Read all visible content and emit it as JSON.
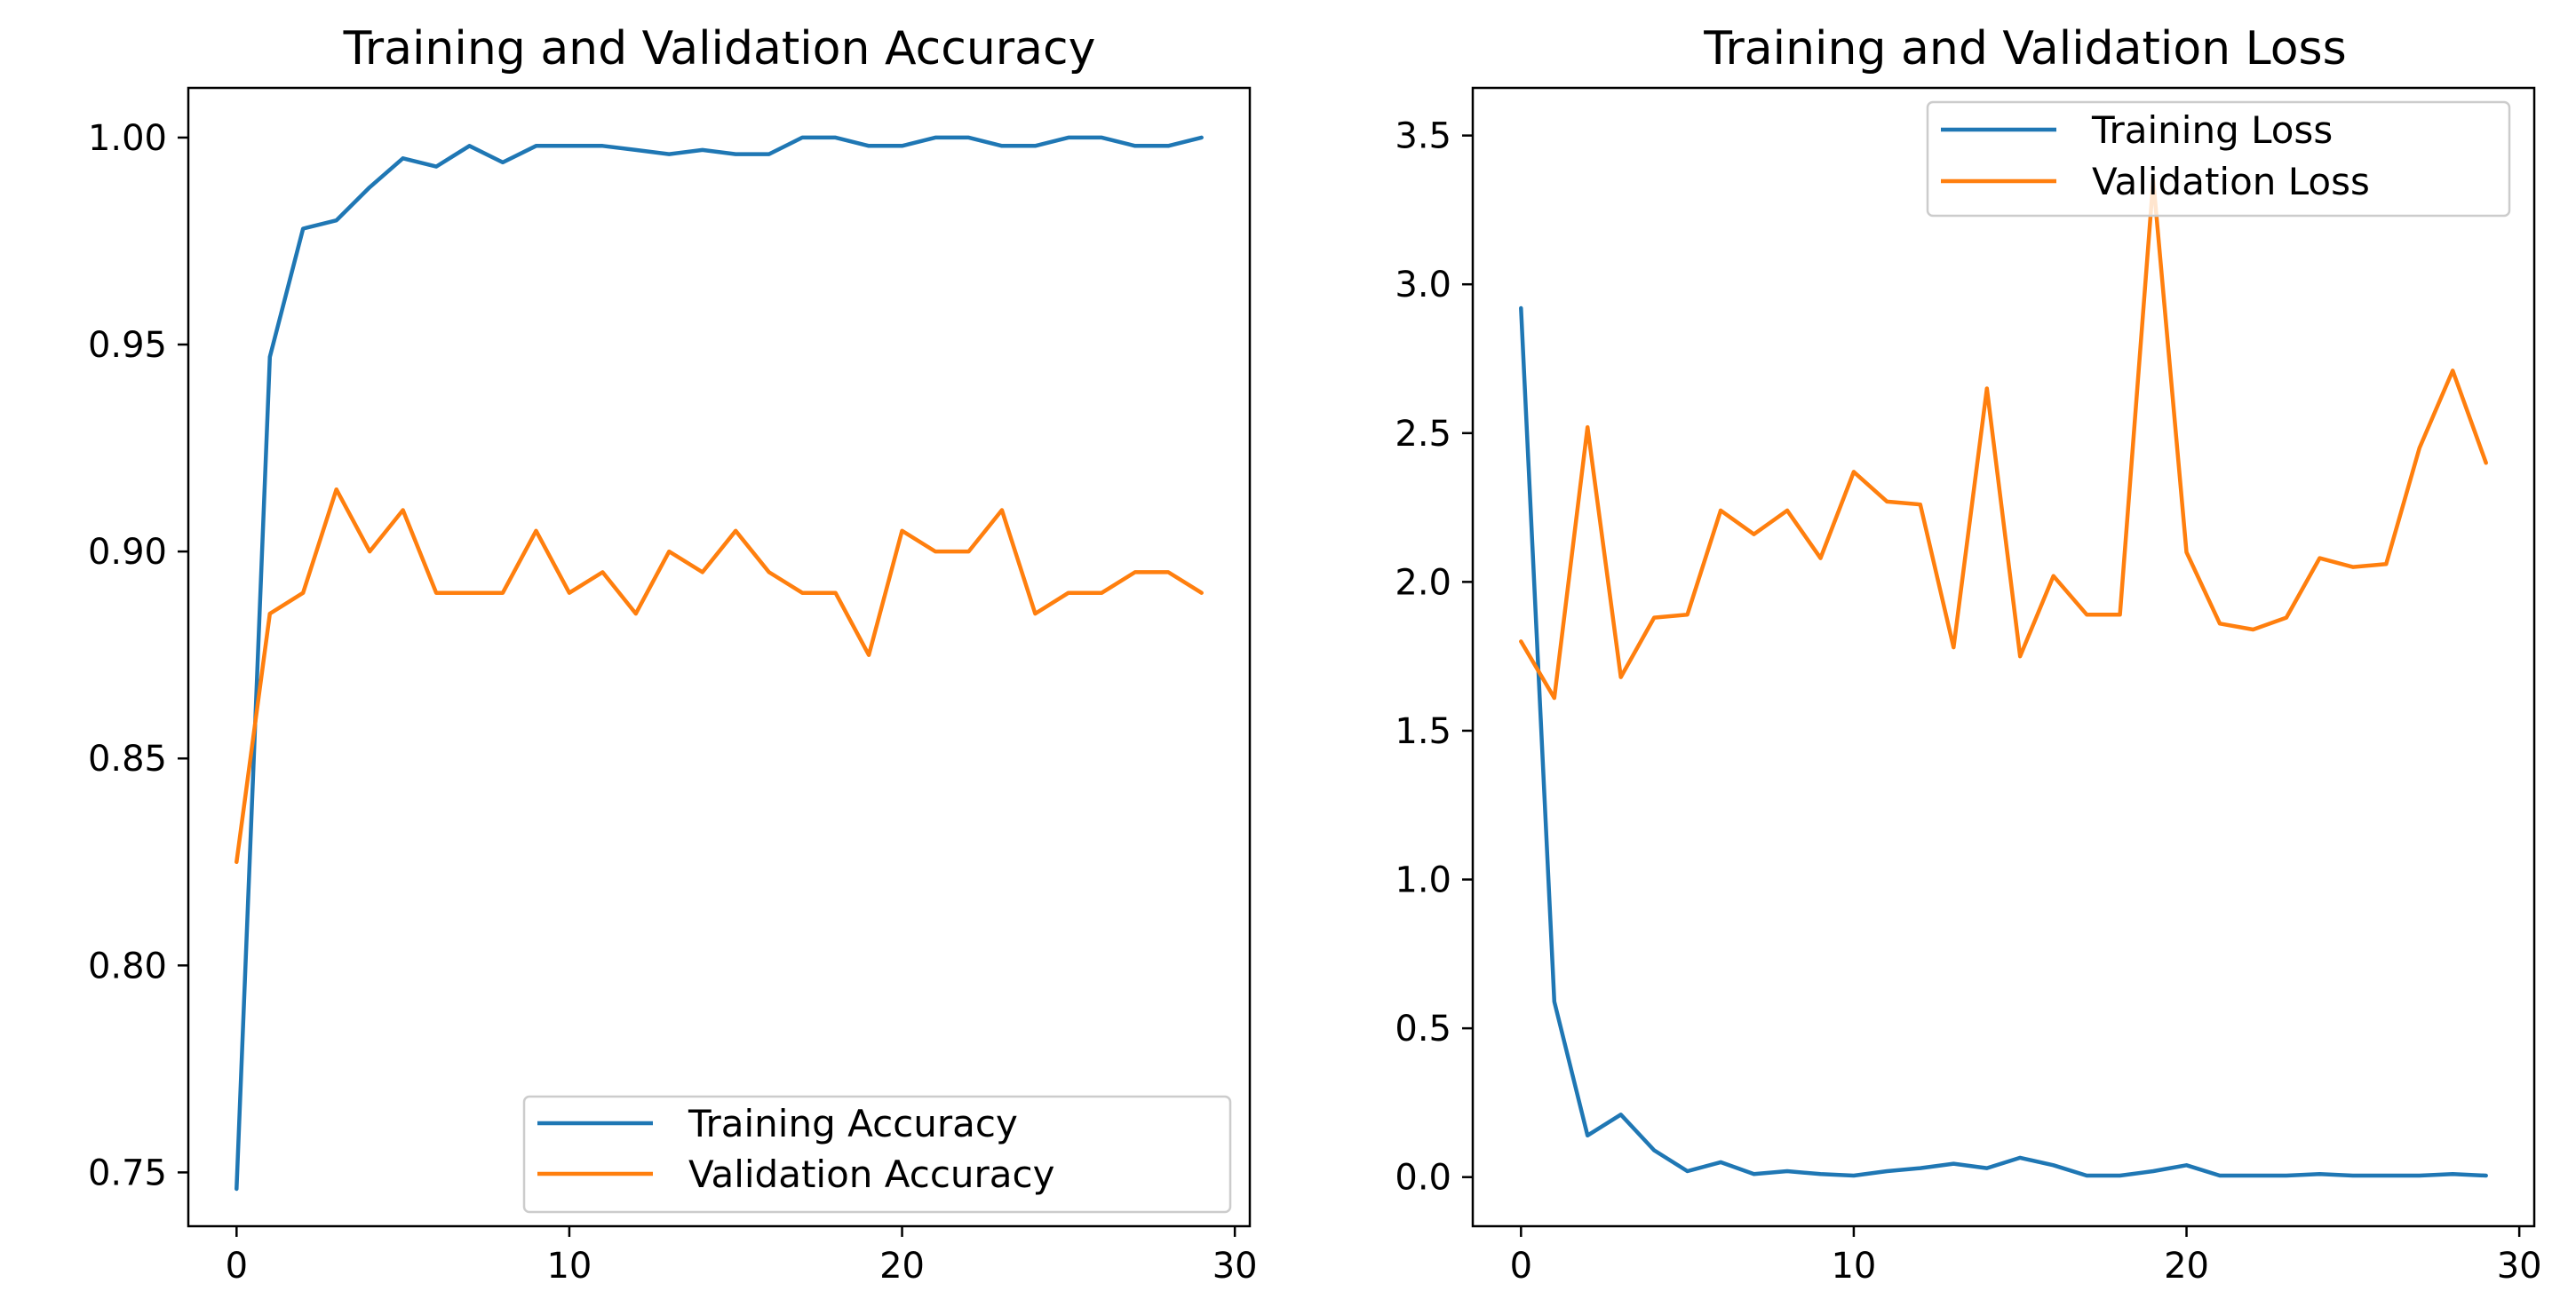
{
  "chart_data": [
    {
      "type": "line",
      "title": "Training and Validation Accuracy",
      "xlabel": "",
      "ylabel": "",
      "xlim": [
        -1.45,
        30.45
      ],
      "ylim": [
        0.737,
        1.012
      ],
      "xticks": [
        0,
        10,
        20,
        30
      ],
      "xtick_labels": [
        "0",
        "10",
        "20",
        "30"
      ],
      "yticks": [
        0.75,
        0.8,
        0.85,
        0.9,
        0.95,
        1.0
      ],
      "ytick_labels": [
        "0.75",
        "0.80",
        "0.85",
        "0.90",
        "0.95",
        "1.00"
      ],
      "legend_position": "lower-right",
      "x": [
        0,
        1,
        2,
        3,
        4,
        5,
        6,
        7,
        8,
        9,
        10,
        11,
        12,
        13,
        14,
        15,
        16,
        17,
        18,
        19,
        20,
        21,
        22,
        23,
        24,
        25,
        26,
        27,
        28,
        29
      ],
      "series": [
        {
          "name": "Training Accuracy",
          "color": "#1f77b4",
          "values": [
            0.746,
            0.947,
            0.978,
            0.98,
            0.988,
            0.995,
            0.993,
            0.998,
            0.994,
            0.998,
            0.998,
            0.998,
            0.997,
            0.996,
            0.997,
            0.996,
            0.996,
            1.0,
            1.0,
            0.998,
            0.998,
            1.0,
            1.0,
            0.998,
            0.998,
            1.0,
            1.0,
            0.998,
            0.998,
            1.0
          ]
        },
        {
          "name": "Validation Accuracy",
          "color": "#ff7f0e",
          "values": [
            0.825,
            0.885,
            0.89,
            0.915,
            0.9,
            0.91,
            0.89,
            0.89,
            0.89,
            0.905,
            0.89,
            0.895,
            0.885,
            0.9,
            0.895,
            0.905,
            0.895,
            0.89,
            0.89,
            0.875,
            0.905,
            0.9,
            0.9,
            0.91,
            0.885,
            0.89,
            0.89,
            0.895,
            0.895,
            0.89
          ]
        }
      ]
    },
    {
      "type": "line",
      "title": "Training and Validation Loss",
      "xlabel": "",
      "ylabel": "",
      "xlim": [
        -1.45,
        30.45
      ],
      "ylim": [
        -0.165,
        3.66
      ],
      "xticks": [
        0,
        10,
        20,
        30
      ],
      "xtick_labels": [
        "0",
        "10",
        "20",
        "30"
      ],
      "yticks": [
        0.0,
        0.5,
        1.0,
        1.5,
        2.0,
        2.5,
        3.0,
        3.5
      ],
      "ytick_labels": [
        "0.0",
        "0.5",
        "1.0",
        "1.5",
        "2.0",
        "2.5",
        "3.0",
        "3.5"
      ],
      "legend_position": "upper-right",
      "x": [
        0,
        1,
        2,
        3,
        4,
        5,
        6,
        7,
        8,
        9,
        10,
        11,
        12,
        13,
        14,
        15,
        16,
        17,
        18,
        19,
        20,
        21,
        22,
        23,
        24,
        25,
        26,
        27,
        28,
        29
      ],
      "series": [
        {
          "name": "Training Loss",
          "color": "#1f77b4",
          "values": [
            2.92,
            0.59,
            0.14,
            0.21,
            0.09,
            0.02,
            0.05,
            0.01,
            0.02,
            0.01,
            0.005,
            0.02,
            0.03,
            0.045,
            0.03,
            0.065,
            0.04,
            0.005,
            0.005,
            0.02,
            0.04,
            0.005,
            0.005,
            0.005,
            0.01,
            0.005,
            0.005,
            0.005,
            0.01,
            0.005
          ]
        },
        {
          "name": "Validation Loss",
          "color": "#ff7f0e",
          "values": [
            1.8,
            1.61,
            2.52,
            1.68,
            1.88,
            1.89,
            2.24,
            2.16,
            2.24,
            2.08,
            2.37,
            2.27,
            2.26,
            1.78,
            2.65,
            1.75,
            2.02,
            1.89,
            1.89,
            3.35,
            2.1,
            1.86,
            1.84,
            1.88,
            2.08,
            2.05,
            2.06,
            2.45,
            2.71,
            2.4
          ]
        }
      ]
    }
  ]
}
